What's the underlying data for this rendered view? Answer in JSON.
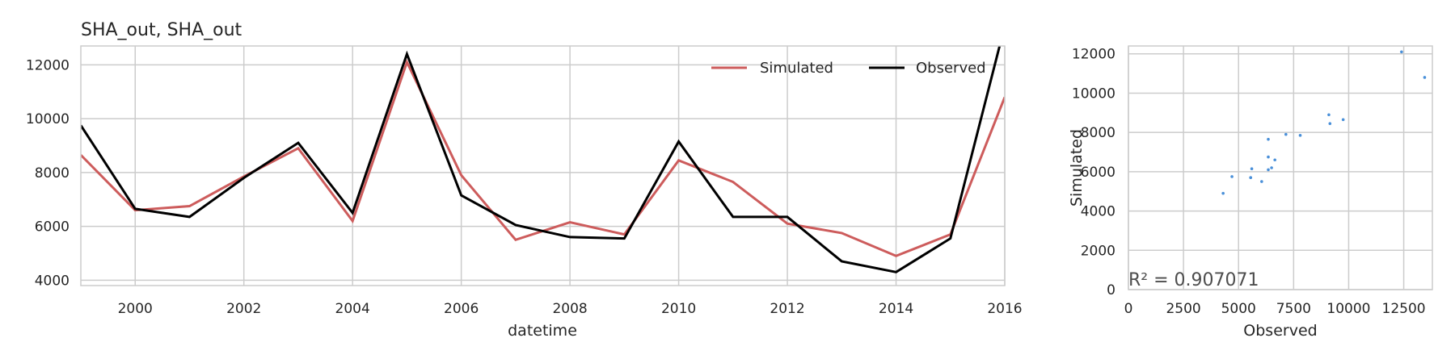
{
  "chart_data": [
    {
      "type": "line",
      "title": "SHA_out, SHA_out",
      "xlabel": "datetime",
      "ylabel": "",
      "x": [
        1999,
        2000,
        2001,
        2002,
        2003,
        2004,
        2005,
        2006,
        2007,
        2008,
        2009,
        2010,
        2011,
        2012,
        2013,
        2014,
        2015,
        2016
      ],
      "xlim": [
        1999,
        2016
      ],
      "ylim": [
        3800,
        12700
      ],
      "x_ticks": [
        "2000",
        "2002",
        "2004",
        "2006",
        "2008",
        "2010",
        "2012",
        "2014",
        "2016"
      ],
      "y_ticks": [
        "4000",
        "6000",
        "8000",
        "10000",
        "12000"
      ],
      "grid": true,
      "legend": "top-right",
      "series": [
        {
          "name": "Simulated",
          "color": "#cd5c5c",
          "values": [
            8650,
            6600,
            6750,
            7850,
            8900,
            6200,
            12100,
            7900,
            5500,
            6150,
            5700,
            8450,
            7650,
            6100,
            5750,
            4900,
            5700,
            10800
          ]
        },
        {
          "name": "Observed",
          "color": "#000000",
          "values": [
            9750,
            6650,
            6350,
            7800,
            9100,
            6500,
            12400,
            7150,
            6050,
            5600,
            5550,
            9150,
            6350,
            6350,
            4700,
            4300,
            5550,
            13450
          ]
        }
      ]
    },
    {
      "type": "scatter",
      "xlabel": "Observed",
      "ylabel": "Simulated",
      "xlim": [
        0,
        13800
      ],
      "ylim": [
        0,
        12400
      ],
      "x_ticks": [
        "0",
        "2500",
        "5000",
        "7500",
        "10000",
        "12500"
      ],
      "y_ticks": [
        "0",
        "2000",
        "4000",
        "6000",
        "8000",
        "10000",
        "12000"
      ],
      "grid": true,
      "color": "#4a90d9",
      "annotation": "R² = 0.907071",
      "points": [
        {
          "x": 4300,
          "y": 4900
        },
        {
          "x": 4700,
          "y": 5750
        },
        {
          "x": 5550,
          "y": 5700
        },
        {
          "x": 5550,
          "y": 5700
        },
        {
          "x": 5600,
          "y": 6150
        },
        {
          "x": 6050,
          "y": 5500
        },
        {
          "x": 6350,
          "y": 6750
        },
        {
          "x": 6350,
          "y": 6100
        },
        {
          "x": 6350,
          "y": 7650
        },
        {
          "x": 6500,
          "y": 6200
        },
        {
          "x": 6650,
          "y": 6600
        },
        {
          "x": 7150,
          "y": 7900
        },
        {
          "x": 7800,
          "y": 7850
        },
        {
          "x": 9100,
          "y": 8900
        },
        {
          "x": 9150,
          "y": 8450
        },
        {
          "x": 9750,
          "y": 8650
        },
        {
          "x": 12400,
          "y": 12100
        },
        {
          "x": 13450,
          "y": 10800
        }
      ]
    }
  ]
}
